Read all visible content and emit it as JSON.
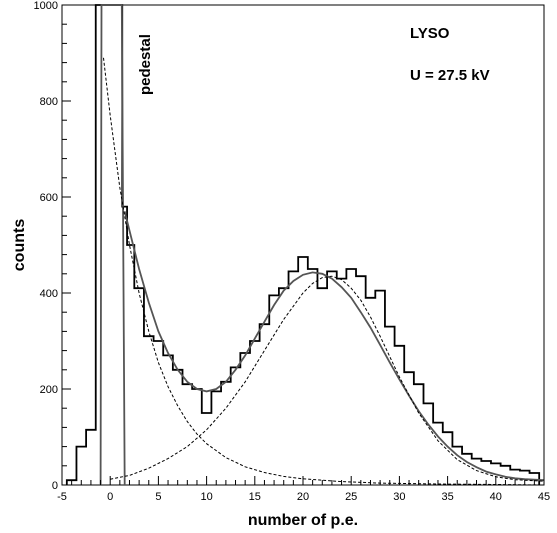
{
  "chart_data": {
    "type": "histogram",
    "title": "",
    "xlabel": "number of p.e.",
    "ylabel": "counts",
    "xlim": [
      -5,
      45
    ],
    "ylim": [
      0,
      1000
    ],
    "xticks": [
      "-5",
      "0",
      "5",
      "10",
      "15",
      "20",
      "25",
      "30",
      "35",
      "40",
      "45"
    ],
    "yticks": [
      "0",
      "200",
      "400",
      "600",
      "800",
      "1000"
    ],
    "grid": false,
    "annotations": {
      "pedestal": "pedestal",
      "crystal": "LYSO",
      "voltage": "U = 27.5 kV"
    },
    "histogram": {
      "name": "",
      "bin_width": 1,
      "bins": [
        {
          "x": -4,
          "y": 10
        },
        {
          "x": -3,
          "y": 80
        },
        {
          "x": -2,
          "y": 115
        },
        {
          "x": -1,
          "y": 1000
        },
        {
          "x": 0,
          "y": 1000
        },
        {
          "x": 1,
          "y": 1000
        },
        {
          "x": 1.5,
          "y": 580
        },
        {
          "x": 2,
          "y": 500
        },
        {
          "x": 3,
          "y": 410
        },
        {
          "x": 4,
          "y": 310
        },
        {
          "x": 5,
          "y": 300
        },
        {
          "x": 6,
          "y": 270
        },
        {
          "x": 7,
          "y": 240
        },
        {
          "x": 8,
          "y": 210
        },
        {
          "x": 9,
          "y": 200
        },
        {
          "x": 10,
          "y": 150
        },
        {
          "x": 11,
          "y": 195
        },
        {
          "x": 12,
          "y": 215
        },
        {
          "x": 13,
          "y": 245
        },
        {
          "x": 14,
          "y": 275
        },
        {
          "x": 15,
          "y": 300
        },
        {
          "x": 16,
          "y": 335
        },
        {
          "x": 17,
          "y": 395
        },
        {
          "x": 18,
          "y": 410
        },
        {
          "x": 19,
          "y": 445
        },
        {
          "x": 20,
          "y": 475
        },
        {
          "x": 21,
          "y": 450
        },
        {
          "x": 22,
          "y": 410
        },
        {
          "x": 23,
          "y": 445
        },
        {
          "x": 24,
          "y": 430
        },
        {
          "x": 25,
          "y": 450
        },
        {
          "x": 26,
          "y": 435
        },
        {
          "x": 27,
          "y": 390
        },
        {
          "x": 28,
          "y": 405
        },
        {
          "x": 29,
          "y": 330
        },
        {
          "x": 30,
          "y": 290
        },
        {
          "x": 31,
          "y": 235
        },
        {
          "x": 32,
          "y": 210
        },
        {
          "x": 33,
          "y": 170
        },
        {
          "x": 34,
          "y": 130
        },
        {
          "x": 35,
          "y": 110
        },
        {
          "x": 36,
          "y": 80
        },
        {
          "x": 37,
          "y": 65
        },
        {
          "x": 38,
          "y": 55
        },
        {
          "x": 39,
          "y": 50
        },
        {
          "x": 40,
          "y": 45
        },
        {
          "x": 41,
          "y": 40
        },
        {
          "x": 42,
          "y": 32
        },
        {
          "x": 43,
          "y": 30
        },
        {
          "x": 44,
          "y": 25
        }
      ]
    },
    "fits": [
      {
        "name": "",
        "style": "solid",
        "color": "#555555",
        "points": [
          [
            -1,
            0
          ],
          [
            -0.9,
            1000
          ],
          [
            1.2,
            1000
          ],
          [
            1.5,
            0
          ]
        ]
      },
      {
        "name": "",
        "style": "solid",
        "color": "#555555",
        "points": [
          [
            1.5,
            570
          ],
          [
            2,
            530
          ],
          [
            3,
            450
          ],
          [
            4,
            380
          ],
          [
            5,
            320
          ],
          [
            6,
            275
          ],
          [
            7,
            240
          ],
          [
            8,
            215
          ],
          [
            9,
            200
          ],
          [
            10,
            195
          ],
          [
            11,
            200
          ],
          [
            12,
            215
          ],
          [
            13,
            240
          ],
          [
            14,
            270
          ],
          [
            15,
            305
          ],
          [
            16,
            340
          ],
          [
            17,
            375
          ],
          [
            18,
            405
          ],
          [
            19,
            425
          ],
          [
            20,
            438
          ],
          [
            21,
            443
          ],
          [
            22,
            440
          ],
          [
            23,
            430
          ],
          [
            24,
            412
          ],
          [
            25,
            390
          ],
          [
            26,
            360
          ],
          [
            27,
            328
          ],
          [
            28,
            292
          ],
          [
            29,
            255
          ],
          [
            30,
            220
          ],
          [
            31,
            186
          ],
          [
            32,
            154
          ],
          [
            33,
            126
          ],
          [
            34,
            101
          ],
          [
            35,
            80
          ],
          [
            36,
            62
          ],
          [
            37,
            48
          ],
          [
            38,
            37
          ],
          [
            39,
            28
          ],
          [
            40,
            22
          ],
          [
            41,
            17
          ],
          [
            42,
            14
          ],
          [
            43,
            12
          ],
          [
            44,
            11
          ],
          [
            45,
            10
          ]
        ]
      },
      {
        "name": "",
        "style": "dashed",
        "color": "#000000",
        "points": [
          [
            -0.7,
            890
          ],
          [
            0,
            770
          ],
          [
            1,
            620
          ],
          [
            2,
            500
          ],
          [
            3,
            400
          ],
          [
            4,
            320
          ],
          [
            5,
            255
          ],
          [
            6,
            205
          ],
          [
            7,
            165
          ],
          [
            8,
            132
          ],
          [
            9,
            106
          ],
          [
            10,
            86
          ],
          [
            12,
            57
          ],
          [
            14,
            38
          ],
          [
            16,
            26
          ],
          [
            18,
            18
          ],
          [
            20,
            13
          ],
          [
            24,
            7
          ],
          [
            28,
            4
          ],
          [
            34,
            2
          ],
          [
            40,
            1
          ],
          [
            45,
            0
          ]
        ]
      },
      {
        "name": "",
        "style": "dashed",
        "color": "#000000",
        "points": [
          [
            0,
            12
          ],
          [
            2,
            20
          ],
          [
            4,
            35
          ],
          [
            6,
            55
          ],
          [
            8,
            80
          ],
          [
            10,
            115
          ],
          [
            12,
            160
          ],
          [
            14,
            215
          ],
          [
            16,
            280
          ],
          [
            18,
            345
          ],
          [
            20,
            400
          ],
          [
            21,
            420
          ],
          [
            22,
            432
          ],
          [
            23,
            435
          ],
          [
            24,
            428
          ],
          [
            25,
            410
          ],
          [
            26,
            385
          ],
          [
            27,
            350
          ],
          [
            28,
            310
          ],
          [
            30,
            225
          ],
          [
            32,
            150
          ],
          [
            34,
            92
          ],
          [
            36,
            53
          ],
          [
            38,
            30
          ],
          [
            40,
            17
          ],
          [
            42,
            11
          ],
          [
            45,
            8
          ]
        ]
      }
    ]
  }
}
